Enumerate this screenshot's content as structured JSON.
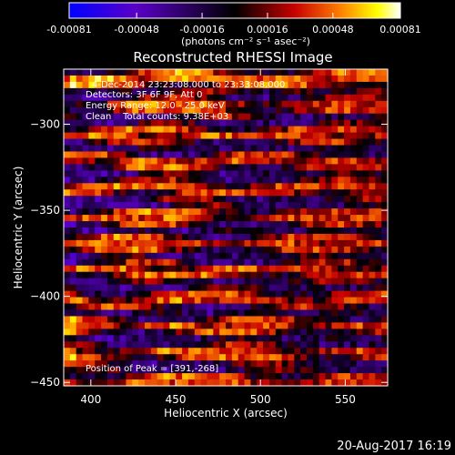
{
  "colorbar": {
    "tick_labels": [
      "-0.00081",
      "-0.00048",
      "-0.00016",
      "0.00016",
      "0.00048",
      "0.00081"
    ],
    "unit_label": "(photons cm⁻² s⁻¹ asec⁻²)",
    "colors": [
      "#0000ff",
      "#5a00c8",
      "#000000",
      "#c80000",
      "#ff8000",
      "#ffff00",
      "#ffffff"
    ]
  },
  "annotations": {
    "time_range": "4-Dec-2014 23:23:08.000 to 23:33:08.000",
    "detectors": "Detectors: 3F 6F 9F, Att 0",
    "energy_range": "Energy Range: 12.0 - 25.0 keV",
    "method_counts": "Clean    Total counts: 9.38E+03",
    "peak_position": "Position of Peak = [391,-268]"
  },
  "footer": {
    "date": "20-Aug-2017 16:19"
  },
  "chart_data": {
    "type": "heatmap",
    "title": "Reconstructed RHESSI Image",
    "xlabel": "Heliocentric X (arcsec)",
    "ylabel": "Heliocentric Y (arcsec)",
    "xlim": [
      384,
      575
    ],
    "ylim": [
      -452,
      -268
    ],
    "x_ticks": [
      400,
      450,
      500,
      550
    ],
    "x_tick_labels": [
      "400",
      "450",
      "500",
      "550"
    ],
    "y_ticks": [
      -300,
      -350,
      -400,
      -450
    ],
    "y_tick_labels": [
      "−300",
      "−350",
      "−400",
      "−450"
    ],
    "value_range": [
      -0.00081,
      0.00081
    ],
    "pixel_grid": [
      52,
      50
    ],
    "grid": false
  }
}
